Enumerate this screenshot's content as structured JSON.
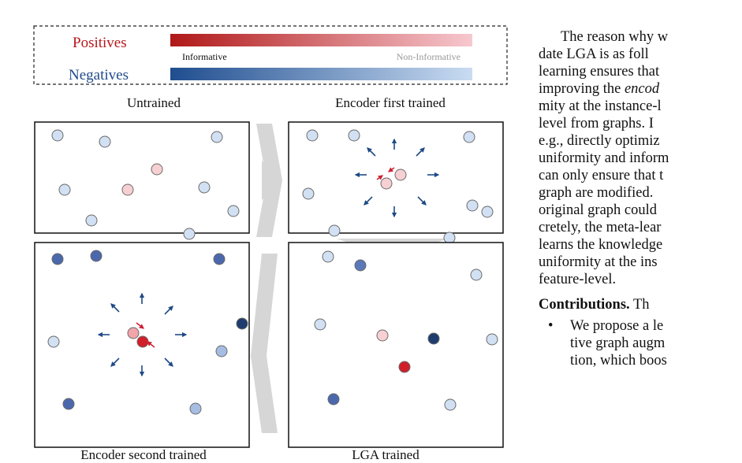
{
  "legend": {
    "positives_label": "Positives",
    "negatives_label": "Negatives",
    "informative_label": "Informative",
    "non_informative_label": "Non-Informative",
    "positive_gradient": [
      "#b01818",
      "#f7c8cf"
    ],
    "negative_gradient": [
      "#1f4d8f",
      "#c9dcf2"
    ]
  },
  "panels": {
    "untrained": "Untrained",
    "encoder_first": "Encoder first trained",
    "lga": "LGA trained",
    "encoder_second": "Encoder second trained"
  },
  "colors": {
    "positive_text": "#b8171c",
    "negative_text": "#1f4a8a",
    "arrow_red": "#cc2233",
    "arrow_blue": "#1e4a85",
    "chevron_gray": "#d6d6d6"
  },
  "paragraph": {
    "lines": [
      "The reason why w",
      "date LGA is as foll",
      "learning ensures that",
      "improving the encod",
      "mity at the instance-l",
      "level from graphs. I",
      "e.g., directly optimiz",
      "uniformity and inform",
      "can only ensure that t",
      "graph are modified.",
      "original graph could",
      "cretely, the meta-lear",
      "learns the knowledge",
      "uniformity at the ins",
      "feature-level."
    ],
    "contributions_heading": "Contributions.",
    "contributions_tail": " Th",
    "bullet_char": "•",
    "bullet_lines": [
      "We propose a le",
      "tive graph augm",
      "tion, which boos"
    ]
  }
}
